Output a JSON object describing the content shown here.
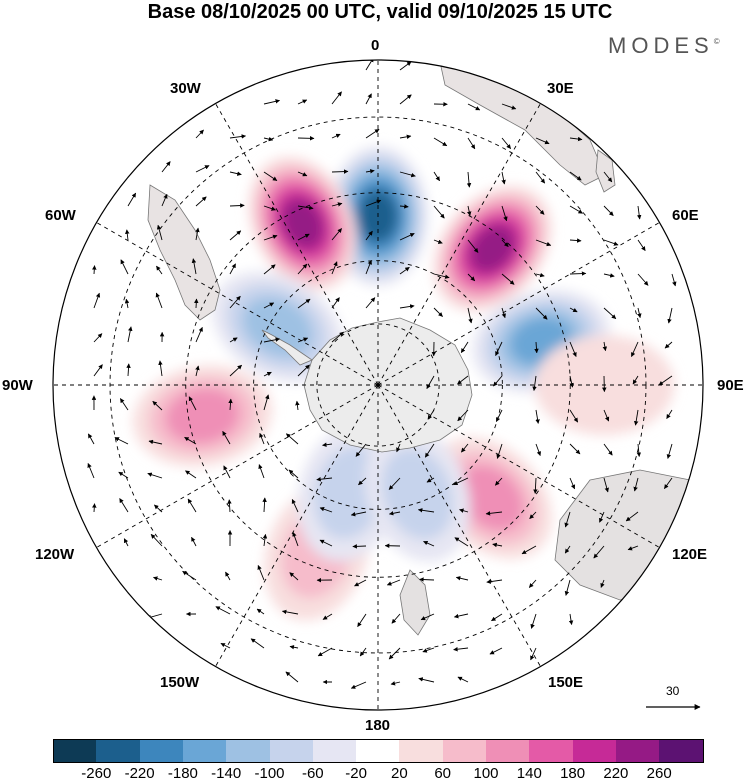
{
  "title": "Base 08/10/2025 00 UTC, valid 09/10/2025 15 UTC",
  "brand": "MODES",
  "brand_mark": "©",
  "longitude_labels": {
    "top": "0",
    "e30": "30E",
    "w30": "30W",
    "e60": "60E",
    "w60": "60W",
    "e90": "90E",
    "w90": "90W",
    "e120": "120E",
    "w120": "120W",
    "e150": "150E",
    "w150": "150W",
    "bottom": "180"
  },
  "reference_vector": {
    "label": "30",
    "units": "m/s"
  },
  "colorbar": {
    "colors": [
      "#0d3a55",
      "#1c5f8d",
      "#3d86bd",
      "#6aa6d6",
      "#9ec1e3",
      "#c6d3ec",
      "#e6e6f3",
      "#ffffff",
      "#f8dede",
      "#f6bccb",
      "#ef8fb6",
      "#e45aa7",
      "#c62a97",
      "#951a85",
      "#5c1272"
    ],
    "ticks": [
      "-260",
      "-220",
      "-180",
      "-140",
      "-100",
      "-60",
      "-20",
      "20",
      "60",
      "100",
      "140",
      "180",
      "220",
      "260"
    ]
  },
  "map": {
    "projection": "south polar stereographic",
    "anomalies": [
      {
        "id": "neg-0",
        "lon": 0,
        "lat": -50,
        "value": -240
      },
      {
        "id": "pos-30w",
        "lon": -25,
        "lat": -48,
        "value": 250
      },
      {
        "id": "pos-40e",
        "lon": 40,
        "lat": -48,
        "value": 240
      },
      {
        "id": "neg-70e",
        "lon": 75,
        "lat": -50,
        "value": -160
      },
      {
        "id": "neg-60w",
        "lon": -60,
        "lat": -62,
        "value": -130
      },
      {
        "id": "pos-100w",
        "lon": -100,
        "lat": -48,
        "value": 140
      },
      {
        "id": "pos-140e",
        "lon": 135,
        "lat": -52,
        "value": 140
      },
      {
        "id": "pos-160w",
        "lon": -160,
        "lat": -48,
        "value": 90
      },
      {
        "id": "neg-165w",
        "lon": -165,
        "lat": -63,
        "value": -90
      },
      {
        "id": "neg-165e",
        "lon": 160,
        "lat": -62,
        "value": -80
      },
      {
        "id": "pos-90e",
        "lon": 90,
        "lat": -38,
        "value": 70
      }
    ]
  }
}
